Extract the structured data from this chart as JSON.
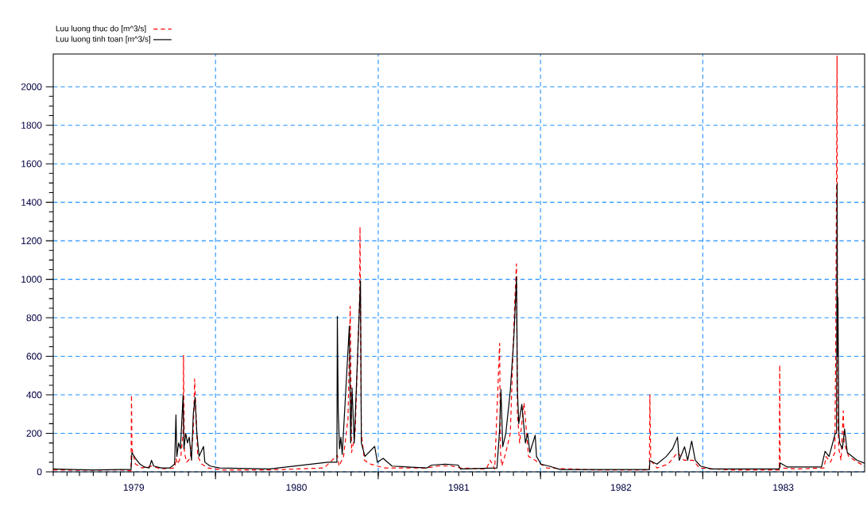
{
  "chart_data": {
    "type": "line",
    "xlim": [
      "1979-01-01",
      "1983-12-31"
    ],
    "ylim": [
      0,
      2170
    ],
    "xticks": [
      {
        "value": "1979-07-01",
        "label": "1979"
      },
      {
        "value": "1980-01-01",
        "label": null
      },
      {
        "value": "1980-07-01",
        "label": "1980"
      },
      {
        "value": "1981-01-01",
        "label": null
      },
      {
        "value": "1981-07-01",
        "label": "1981"
      },
      {
        "value": "1982-01-01",
        "label": null
      },
      {
        "value": "1982-07-01",
        "label": "1982"
      },
      {
        "value": "1983-01-01",
        "label": null
      },
      {
        "value": "1983-07-01",
        "label": "1983"
      }
    ],
    "yticks": [
      0,
      200,
      400,
      600,
      800,
      1000,
      1200,
      1400,
      1600,
      1800,
      2000
    ],
    "grid": true,
    "legend": "top left",
    "series": [
      {
        "name": "Luu luong thuc do  [m^3/s]",
        "color": "#ff0000",
        "line_style": "dashed",
        "x": [
          "1979-01-01",
          "1979-03-01",
          "1979-06-01",
          "1979-06-25",
          "1979-06-26",
          "1979-06-27",
          "1979-07-05",
          "1979-07-20",
          "1979-08-10",
          "1979-09-01",
          "1979-10-01",
          "1979-10-04",
          "1979-10-08",
          "1979-10-15",
          "1979-10-20",
          "1979-10-21",
          "1979-10-23",
          "1979-10-28",
          "1979-11-05",
          "1979-11-12",
          "1979-11-15",
          "1979-11-18",
          "1979-11-22",
          "1979-12-01",
          "1979-12-15",
          "1980-01-15",
          "1980-05-01",
          "1980-09-01",
          "1980-10-01",
          "1980-10-05",
          "1980-10-15",
          "1980-10-25",
          "1980-10-30",
          "1980-11-02",
          "1980-11-10",
          "1980-11-20",
          "1980-11-21",
          "1980-11-24",
          "1980-12-01",
          "1980-12-15",
          "1981-01-15",
          "1981-04-20",
          "1981-05-15",
          "1981-06-15",
          "1981-07-05",
          "1981-09-01",
          "1981-09-10",
          "1981-09-20",
          "1981-10-01",
          "1981-10-03",
          "1981-10-06",
          "1981-10-15",
          "1981-10-25",
          "1981-11-04",
          "1981-11-08",
          "1981-11-10",
          "1981-11-15",
          "1981-11-25",
          "1981-12-05",
          "1981-12-20",
          "1982-01-15",
          "1982-05-01",
          "1982-09-03",
          "1982-09-04",
          "1982-09-06",
          "1982-09-20",
          "1982-10-15",
          "1982-11-05",
          "1982-11-20",
          "1982-12-10",
          "1982-12-25",
          "1983-03-01",
          "1983-06-22",
          "1983-06-23",
          "1983-06-24",
          "1983-08-01",
          "1983-10-01",
          "1983-10-05",
          "1983-10-15",
          "1983-10-25",
          "1983-10-27",
          "1983-10-30",
          "1983-10-31",
          "1983-11-03",
          "1983-11-08",
          "1983-11-13",
          "1983-11-15",
          "1983-11-25",
          "1983-12-15",
          "1983-12-31"
        ],
        "values": [
          10,
          8,
          10,
          5,
          400,
          120,
          40,
          20,
          30,
          15,
          20,
          70,
          40,
          80,
          200,
          605,
          100,
          50,
          70,
          200,
          482,
          300,
          80,
          40,
          20,
          10,
          10,
          20,
          86,
          30,
          80,
          276,
          860,
          100,
          200,
          900,
          1272,
          200,
          60,
          40,
          20,
          20,
          30,
          30,
          20,
          15,
          60,
          15,
          667,
          100,
          30,
          100,
          200,
          881,
          1080,
          300,
          150,
          358,
          80,
          60,
          20,
          10,
          10,
          400,
          60,
          20,
          40,
          100,
          60,
          60,
          20,
          10,
          10,
          555,
          20,
          15,
          20,
          80,
          50,
          100,
          646,
          2160,
          300,
          120,
          60,
          317,
          150,
          80,
          50,
          30
        ]
      },
      {
        "name": "Luu luong tinh toan [m^3/s]",
        "color": "#000000",
        "line_style": "solid",
        "x": [
          "1979-01-01",
          "1979-02-15",
          "1979-04-01",
          "1979-06-01",
          "1979-06-25",
          "1979-06-27",
          "1979-07-05",
          "1979-07-15",
          "1979-07-25",
          "1979-08-05",
          "1979-08-10",
          "1979-08-15",
          "1979-09-01",
          "1979-09-20",
          "1979-10-01",
          "1979-10-04",
          "1979-10-06",
          "1979-10-10",
          "1979-10-14",
          "1979-10-20",
          "1979-10-22",
          "1979-10-26",
          "1979-10-30",
          "1979-11-03",
          "1979-11-08",
          "1979-11-12",
          "1979-11-16",
          "1979-11-20",
          "1979-11-25",
          "1979-12-05",
          "1979-12-08",
          "1979-12-20",
          "1980-01-10",
          "1980-05-01",
          "1980-09-10",
          "1980-09-30",
          "1980-10-01",
          "1980-10-03",
          "1980-10-06",
          "1980-10-09",
          "1980-10-12",
          "1980-10-28",
          "1980-10-31",
          "1980-11-03",
          "1980-11-08",
          "1980-11-22",
          "1980-11-24",
          "1980-12-02",
          "1980-12-24",
          "1980-12-30",
          "1981-01-12",
          "1981-02-01",
          "1981-04-20",
          "1981-05-01",
          "1981-06-01",
          "1981-06-30",
          "1981-07-05",
          "1981-09-25",
          "1981-10-01",
          "1981-10-04",
          "1981-10-08",
          "1981-10-15",
          "1981-10-25",
          "1981-11-02",
          "1981-11-08",
          "1981-11-10",
          "1981-11-13",
          "1981-11-20",
          "1981-11-28",
          "1981-12-03",
          "1981-12-08",
          "1981-12-20",
          "1981-12-23",
          "1982-01-02",
          "1982-01-20",
          "1982-02-15",
          "1982-09-03",
          "1982-09-04",
          "1982-09-20",
          "1982-10-11",
          "1982-10-25",
          "1982-11-05",
          "1982-11-09",
          "1982-11-21",
          "1982-11-28",
          "1982-12-07",
          "1982-12-15",
          "1982-12-27",
          "1983-01-20",
          "1983-06-22",
          "1983-06-24",
          "1983-07-10",
          "1983-09-25",
          "1983-10-03",
          "1983-10-12",
          "1983-10-19",
          "1983-10-26",
          "1983-10-29",
          "1983-10-30",
          "1983-10-31",
          "1983-11-01",
          "1983-11-03",
          "1983-11-05",
          "1983-11-11",
          "1983-11-16",
          "1983-11-22",
          "1983-12-14",
          "1983-12-31"
        ],
        "values": [
          15,
          12,
          10,
          12,
          12,
          100,
          70,
          40,
          25,
          20,
          60,
          30,
          20,
          20,
          40,
          296,
          80,
          150,
          120,
          395,
          120,
          200,
          150,
          180,
          60,
          300,
          387,
          200,
          80,
          132,
          50,
          30,
          20,
          15,
          50,
          50,
          807,
          317,
          120,
          180,
          90,
          758,
          150,
          436,
          150,
          992,
          150,
          80,
          132,
          50,
          70,
          30,
          20,
          35,
          40,
          35,
          15,
          20,
          218,
          428,
          130,
          200,
          420,
          696,
          1013,
          430,
          250,
          350,
          150,
          200,
          100,
          190,
          80,
          40,
          30,
          12,
          12,
          58,
          40,
          80,
          120,
          181,
          60,
          130,
          60,
          160,
          60,
          30,
          15,
          15,
          46,
          25,
          25,
          107,
          80,
          140,
          200,
          200,
          1495,
          600,
          906,
          200,
          150,
          120,
          222,
          100,
          60,
          45
        ]
      }
    ]
  }
}
